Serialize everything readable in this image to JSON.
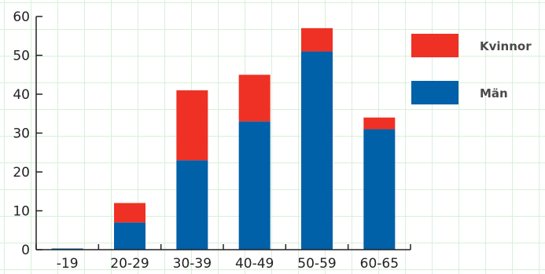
{
  "chart_data": {
    "type": "bar",
    "stacked": true,
    "categories": [
      "-19",
      "20-29",
      "30-39",
      "40-49",
      "50-59",
      "60-65"
    ],
    "series": [
      {
        "name": "Män",
        "color": "#0060a8",
        "values": [
          0.3,
          7,
          23,
          33,
          51,
          31
        ]
      },
      {
        "name": "Kvinnor",
        "color": "#ee3124",
        "values": [
          0,
          5,
          18,
          12,
          6,
          3
        ]
      }
    ],
    "y_ticks": [
      "0",
      "10",
      "20",
      "30",
      "40",
      "50",
      "60"
    ],
    "ylim": [
      0,
      60
    ],
    "title": "",
    "xlabel": "",
    "ylabel": "",
    "legend": {
      "placement": "right",
      "items": [
        {
          "label": "Kvinnor",
          "color": "#ee3124"
        },
        {
          "label": "Män",
          "color": "#0060a8"
        }
      ]
    },
    "background_grid": true,
    "grid_color": "#d9efd9"
  }
}
